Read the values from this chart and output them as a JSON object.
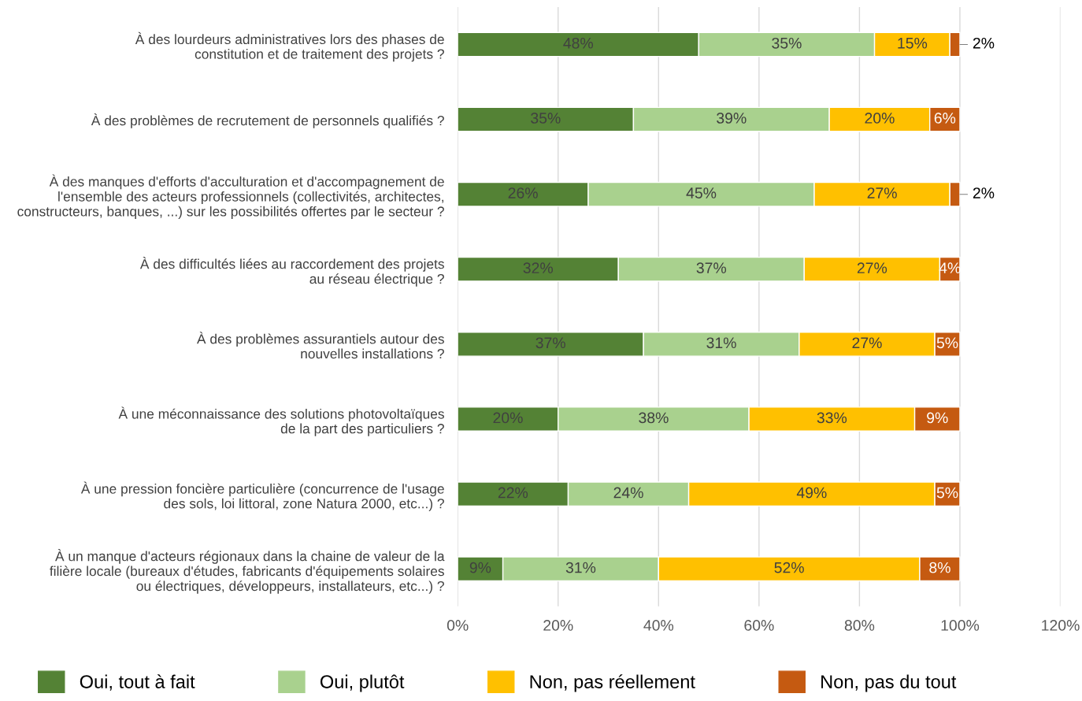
{
  "chart_data": {
    "type": "bar",
    "orientation": "horizontal",
    "stacked": true,
    "categories": [
      "À des lourdeurs administratives lors des phases de\nconstitution et de traitement des projets ?",
      "À des problèmes de recrutement de personnels qualifiés ?",
      "À des manques d'efforts d'acculturation et d'accompagnement de\nl'ensemble des acteurs professionnels (collectivités, architectes,\nconstructeurs, banques, ...) sur les possibilités offertes par le secteur ?",
      "À des difficultés liées au raccordement des projets\nau réseau électrique ?",
      "À des problèmes assurantiels autour des\nnouvelles installations ?",
      "À une méconnaissance des solutions photovoltaïques\nde la part des particuliers ?",
      "À une pression foncière particulière (concurrence de l'usage\ndes sols, loi littoral, zone Natura 2000, etc...) ?",
      "À un manque d'acteurs régionaux dans la chaine de valeur de la\nfilière locale (bureaux d'études, fabricants d'équipements solaires\nou électriques, développeurs, installateurs, etc...) ?"
    ],
    "series": [
      {
        "name": "Oui, tout à fait",
        "color": "#548235",
        "values": [
          48,
          35,
          26,
          32,
          37,
          20,
          22,
          9
        ],
        "value_labels": [
          "48%",
          "35%",
          "26%",
          "32%",
          "37%",
          "20%",
          "22%",
          "9%"
        ]
      },
      {
        "name": "Oui, plutôt",
        "color": "#a9d18e",
        "values": [
          35,
          39,
          45,
          37,
          31,
          38,
          24,
          31
        ],
        "value_labels": [
          "35%",
          "39%",
          "45%",
          "37%",
          "31%",
          "38%",
          "24%",
          "31%"
        ]
      },
      {
        "name": "Non, pas réellement",
        "color": "#ffc000",
        "values": [
          15,
          20,
          27,
          27,
          27,
          33,
          49,
          52
        ],
        "value_labels": [
          "15%",
          "20%",
          "27%",
          "27%",
          "27%",
          "33%",
          "49%",
          "52%"
        ]
      },
      {
        "name": "Non, pas du tout",
        "color": "#c55a11",
        "values": [
          2,
          6,
          2,
          4,
          5,
          9,
          5,
          8
        ],
        "value_labels": [
          "2%",
          "6%",
          "2%",
          "4%",
          "5%",
          "9%",
          "5%",
          "8%"
        ]
      }
    ],
    "xlim": [
      0,
      120
    ],
    "xticks": [
      {
        "value": 0,
        "label": "0%"
      },
      {
        "value": 20,
        "label": "20%"
      },
      {
        "value": 40,
        "label": "40%"
      },
      {
        "value": 60,
        "label": "60%"
      },
      {
        "value": 80,
        "label": "80%"
      },
      {
        "value": 100,
        "label": "100%"
      },
      {
        "value": 120,
        "label": "120%"
      }
    ],
    "grid": "x",
    "legend": "bottom"
  }
}
